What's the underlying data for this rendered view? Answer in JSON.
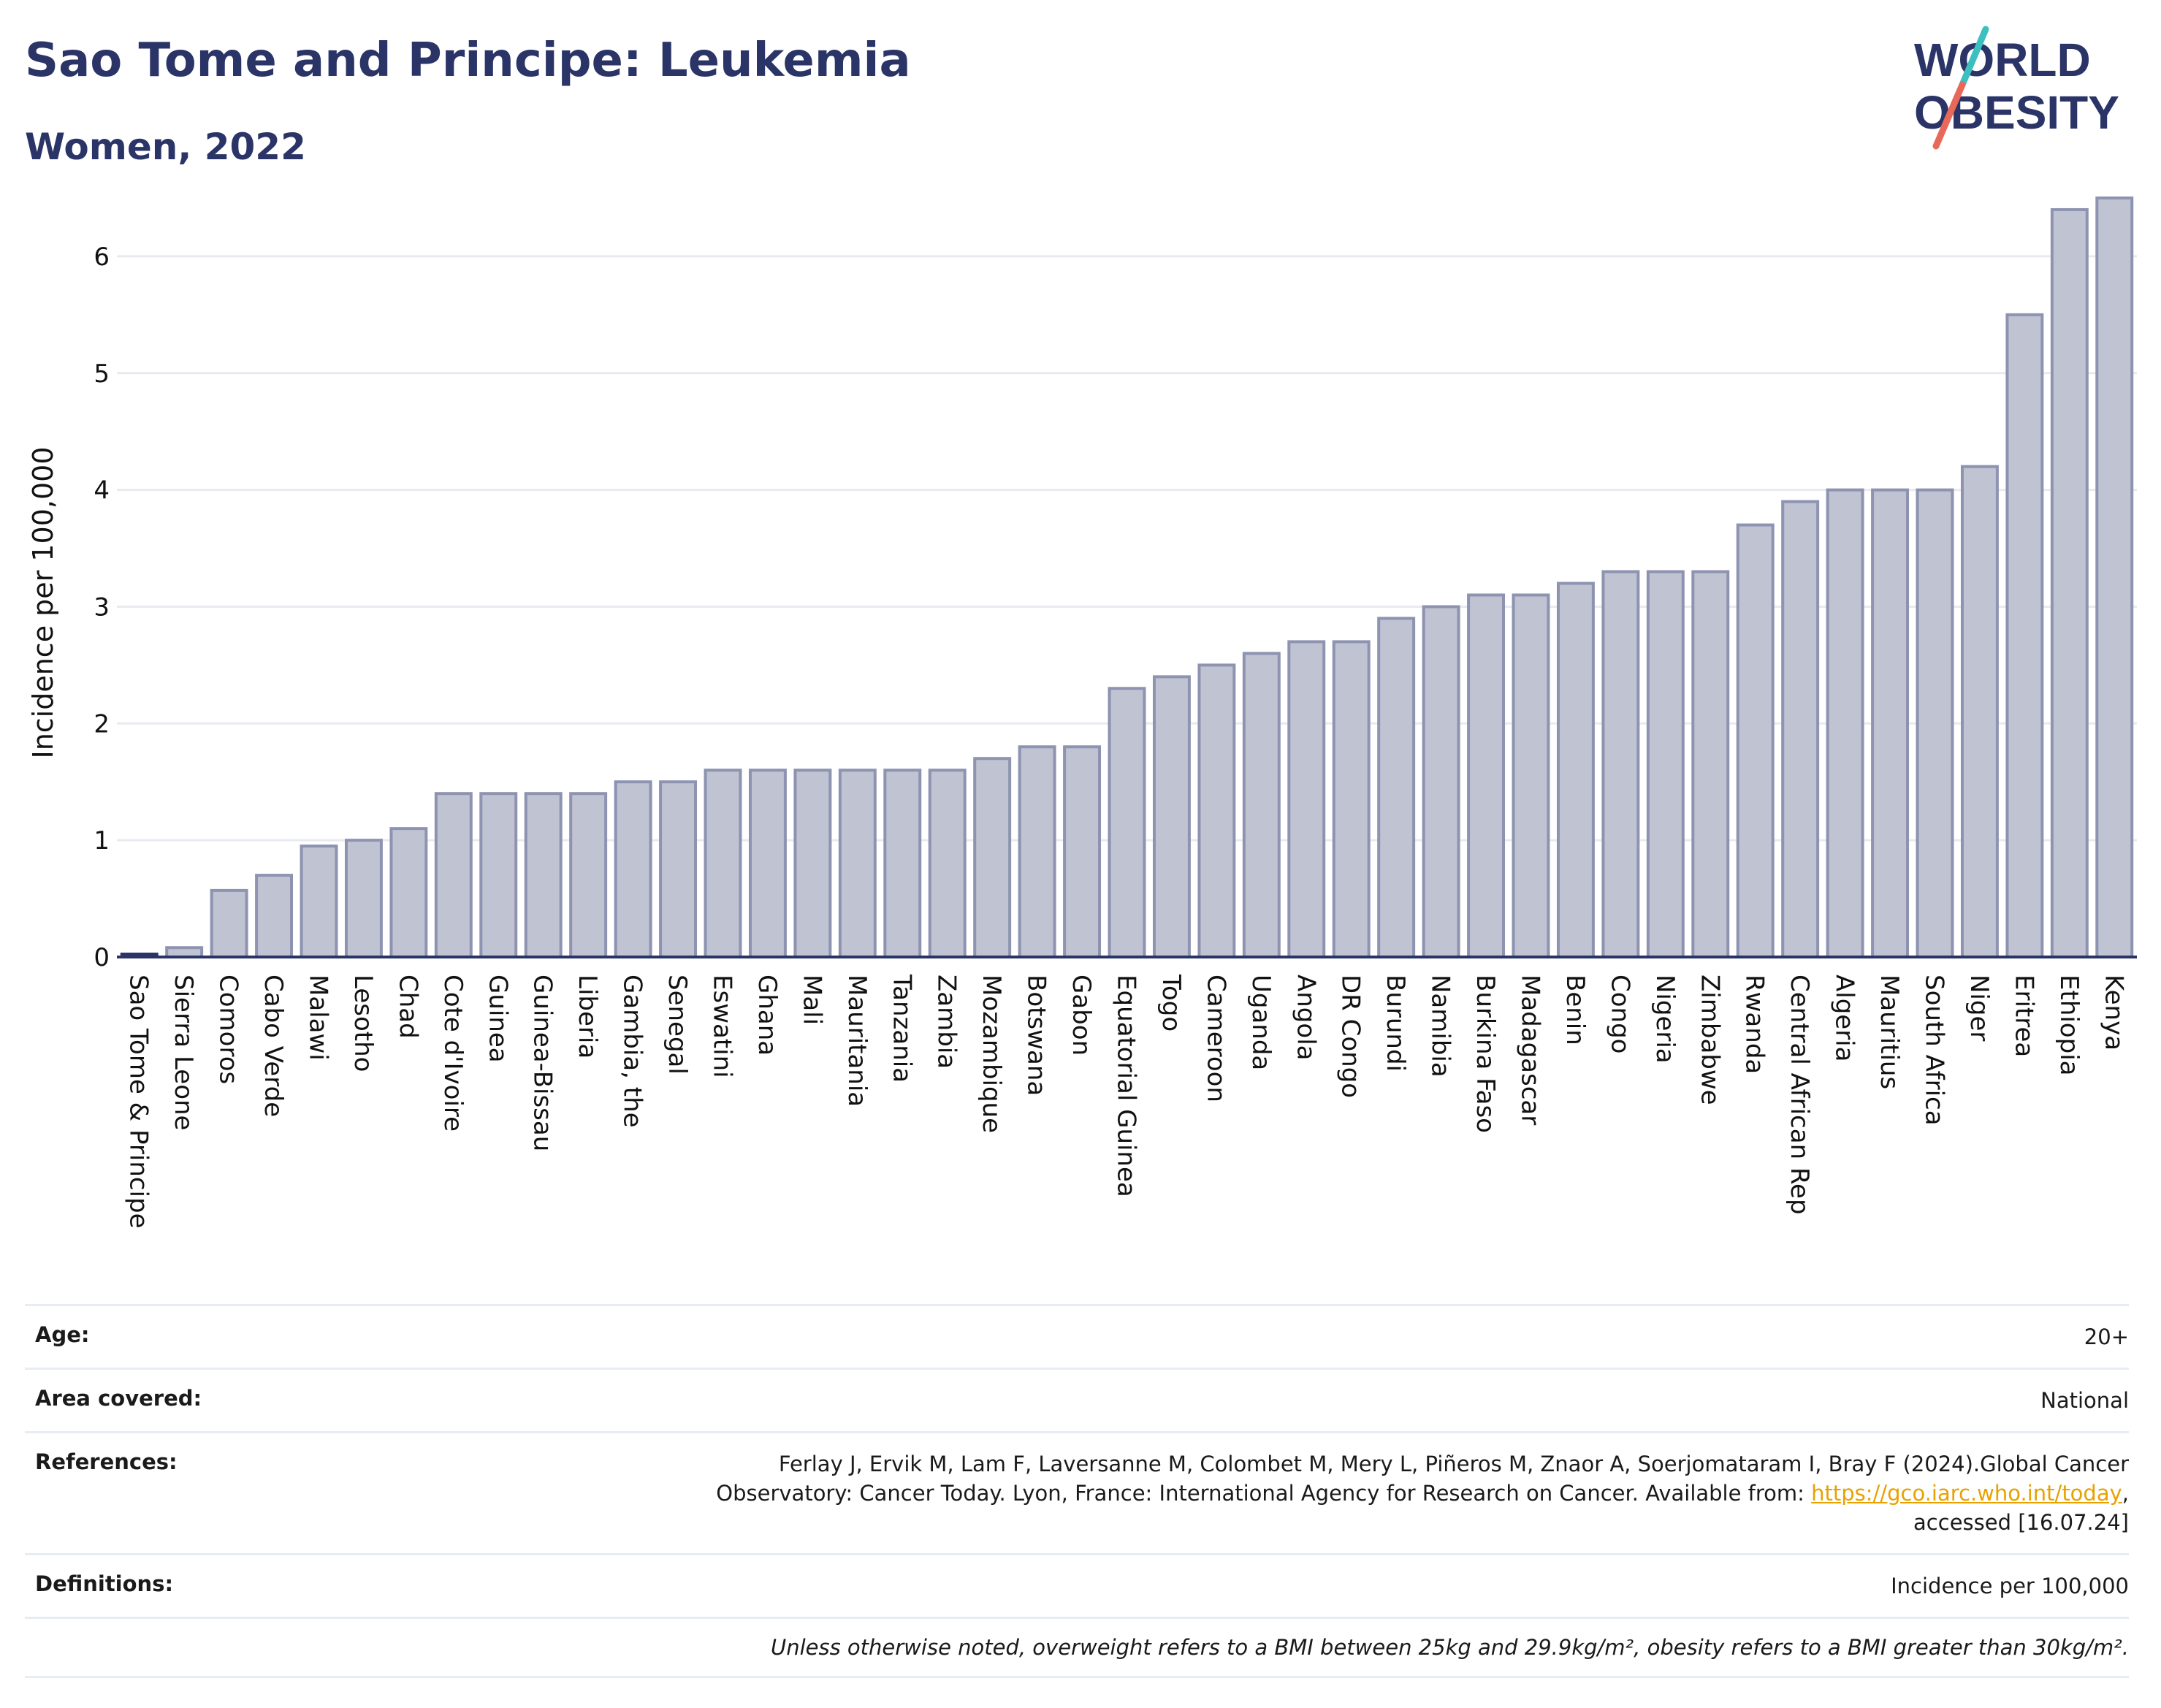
{
  "header": {
    "title": "Sao Tome and Principe: Leukemia",
    "subtitle": "Women, 2022"
  },
  "logo": {
    "line1": "WORLD",
    "line2": "OBESITY",
    "colors": {
      "text": "#2b3467",
      "slash_teal": "#3bbfbf",
      "slash_red": "#e8695a"
    }
  },
  "chart_data": {
    "type": "bar",
    "title": "",
    "xlabel": "",
    "ylabel": "Incidence per 100,000",
    "ylim": [
      0,
      6.6
    ],
    "yticks": [
      0,
      1,
      2,
      3,
      4,
      5,
      6
    ],
    "grid": true,
    "colors": {
      "bar_fill": "#bfc3d2",
      "bar_edge": "#8d93b0",
      "highlight": "#2b3467",
      "grid": "#e8eaf0"
    },
    "highlight_category": "Sao Tome & Principe",
    "categories": [
      "Sao Tome & Principe",
      "Sierra Leone",
      "Comoros",
      "Cabo Verde",
      "Malawi",
      "Lesotho",
      "Chad",
      "Cote d'Ivoire",
      "Guinea",
      "Guinea-Bissau",
      "Liberia",
      "Gambia, the",
      "Senegal",
      "Eswatini",
      "Ghana",
      "Mali",
      "Mauritania",
      "Tanzania",
      "Zambia",
      "Mozambique",
      "Botswana",
      "Gabon",
      "Equatorial Guinea",
      "Togo",
      "Cameroon",
      "Uganda",
      "Angola",
      "DR Congo",
      "Burundi",
      "Namibia",
      "Burkina Faso",
      "Madagascar",
      "Benin",
      "Congo",
      "Nigeria",
      "Zimbabwe",
      "Rwanda",
      "Central African Rep",
      "Algeria",
      "Mauritius",
      "South Africa",
      "Niger",
      "Eritrea",
      "Ethiopia",
      "Kenya"
    ],
    "values": [
      0.02,
      0.08,
      0.57,
      0.7,
      0.95,
      1.0,
      1.1,
      1.4,
      1.4,
      1.4,
      1.4,
      1.5,
      1.5,
      1.6,
      1.6,
      1.6,
      1.6,
      1.6,
      1.6,
      1.7,
      1.8,
      1.8,
      2.3,
      2.4,
      2.5,
      2.6,
      2.7,
      2.7,
      2.9,
      3.0,
      3.1,
      3.1,
      3.2,
      3.3,
      3.3,
      3.3,
      3.7,
      3.9,
      4.0,
      4.0,
      4.0,
      4.2,
      5.5,
      6.4,
      6.5
    ]
  },
  "info": {
    "age_label": "Age:",
    "age_value": "20+",
    "area_label": "Area covered:",
    "area_value": "National",
    "references_label": "References:",
    "references_line1": "Ferlay J, Ervik M, Lam F, Laversanne M, Colombet M, Mery L, Piñeros M, Znaor A, Soerjomataram I, Bray F (2024).Global Cancer",
    "references_line2": "Observatory: Cancer Today. Lyon, France: International Agency for Research on Cancer. Available from:",
    "references_link": "https://gco.iarc.who.int/today",
    "references_line3": "accessed [16.07.24]",
    "definitions_label": "Definitions:",
    "definitions_value": "Incidence per 100,000",
    "note": "Unless otherwise noted, overweight refers to a BMI between 25kg and 29.9kg/m², obesity refers to a BMI greater than 30kg/m²."
  }
}
